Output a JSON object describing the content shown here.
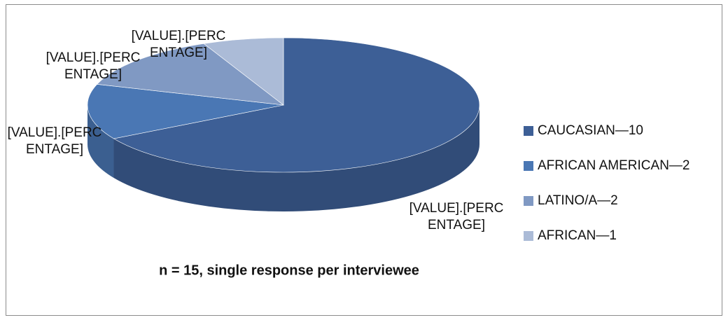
{
  "chart_data": {
    "type": "pie",
    "categories": [
      "CAUCASIAN—10",
      "AFRICAN AMERICAN—2",
      "LATINO/A—2",
      "AFRICAN—1"
    ],
    "values": [
      10,
      2,
      2,
      1
    ],
    "value_labels": [
      "[VALUE].[PERCENTAGE]",
      "[VALUE].[PERCENTAGE]",
      "[VALUE].[PERCENTAGE]",
      "[VALUE].[PERCENTAGE]"
    ],
    "colors": [
      "#3d5f96",
      "#4a77b4",
      "#8099c3",
      "#abbbd7"
    ],
    "note": "n = 15, single response per interviewee",
    "legend": "right"
  }
}
